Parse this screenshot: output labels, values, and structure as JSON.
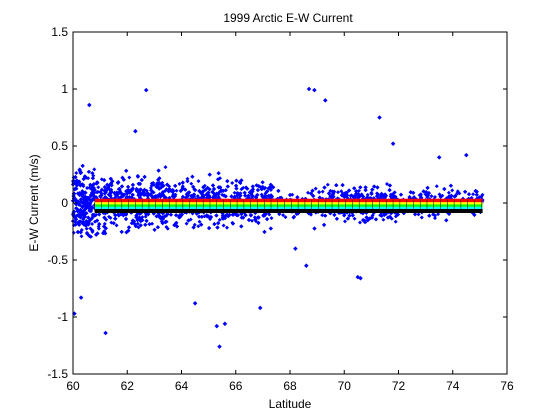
{
  "chart_data": {
    "type": "scatter",
    "title": "1999 Arctic E-W Current",
    "xlabel": "Latitude",
    "ylabel": "E-W Current (m/s)",
    "xlim": [
      60,
      76
    ],
    "ylim": [
      -1.5,
      1.5
    ],
    "xticks": [
      60,
      62,
      64,
      66,
      68,
      70,
      72,
      74,
      76
    ],
    "xtick_labels": [
      "60",
      "62",
      "64",
      "66",
      "68",
      "70",
      "72",
      "74",
      "76"
    ],
    "yticks": [
      -1.5,
      -1,
      -0.5,
      0,
      0.5,
      1,
      1.5
    ],
    "ytick_labels": [
      "-1.5",
      "-1",
      "-0.5",
      "0",
      "0.5",
      "1",
      "1.5"
    ],
    "grid": false,
    "legend": "none",
    "series_color": "#0000ff",
    "band_colors": [
      "#ff0000",
      "#ffff00",
      "#00ff00",
      "#00ffff",
      "#000000"
    ],
    "x_extent": [
      60.0,
      75.1
    ],
    "outliers": [
      {
        "x": 60.05,
        "y": -0.97
      },
      {
        "x": 60.3,
        "y": -0.83
      },
      {
        "x": 60.6,
        "y": 0.86
      },
      {
        "x": 61.2,
        "y": -1.14
      },
      {
        "x": 62.7,
        "y": 0.99
      },
      {
        "x": 62.3,
        "y": 0.63
      },
      {
        "x": 64.5,
        "y": -0.88
      },
      {
        "x": 65.4,
        "y": -1.26
      },
      {
        "x": 65.3,
        "y": -1.08
      },
      {
        "x": 65.6,
        "y": -1.06
      },
      {
        "x": 66.9,
        "y": -0.92
      },
      {
        "x": 68.7,
        "y": 1.0
      },
      {
        "x": 68.9,
        "y": 0.99
      },
      {
        "x": 69.3,
        "y": 0.9
      },
      {
        "x": 68.2,
        "y": -0.4
      },
      {
        "x": 68.6,
        "y": -0.55
      },
      {
        "x": 70.5,
        "y": -0.65
      },
      {
        "x": 70.6,
        "y": -0.66
      },
      {
        "x": 71.3,
        "y": 0.75
      },
      {
        "x": 71.8,
        "y": 0.52
      },
      {
        "x": 73.5,
        "y": 0.4
      },
      {
        "x": 74.5,
        "y": 0.42
      }
    ]
  }
}
